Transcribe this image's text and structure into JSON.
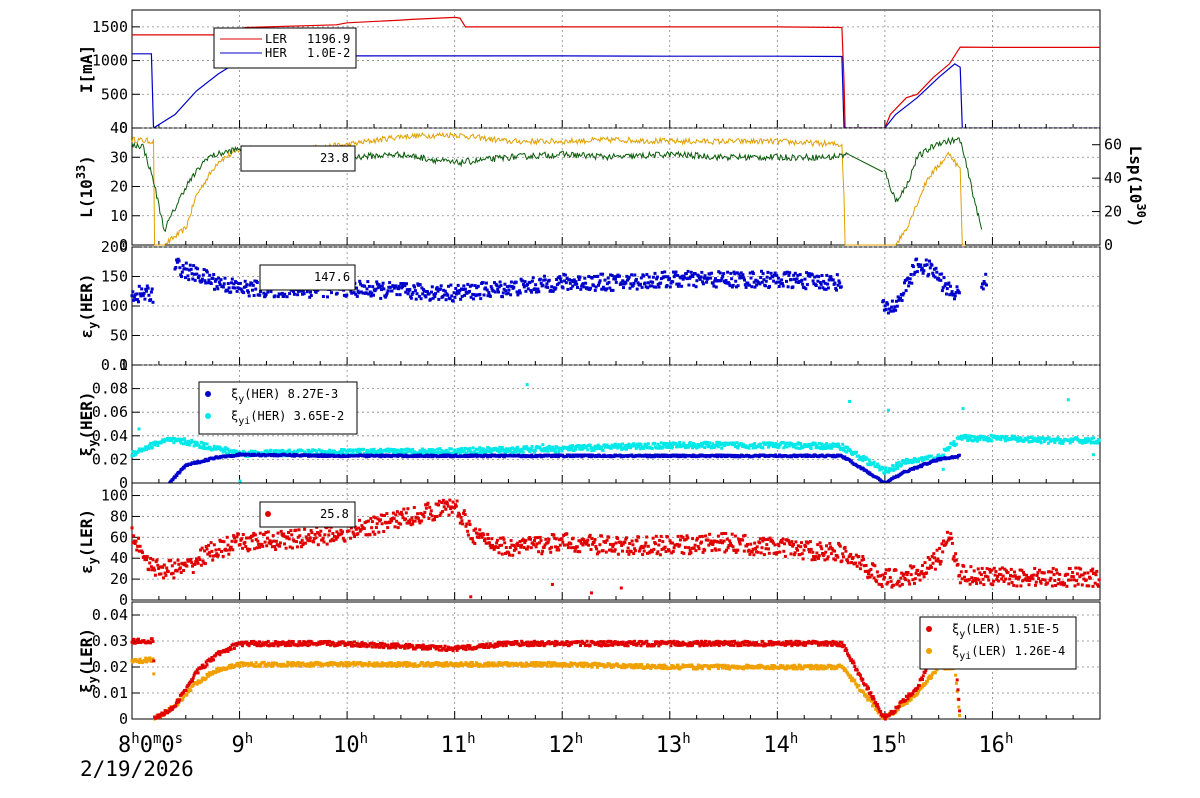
{
  "x_axis": {
    "start_label": "8",
    "start_label_sup": "h",
    "start_rest": "0",
    "start_rest_sup": "m",
    "start_rest2": "0",
    "start_rest2_sup": "s",
    "date": "2/19/2026",
    "hour_labels": [
      "9",
      "10",
      "11",
      "12",
      "13",
      "14",
      "15",
      "16"
    ],
    "hour_sup": "h",
    "range_hours": [
      8.0,
      17.0
    ]
  },
  "colors": {
    "ler": "#e00000",
    "her": "#0000cc",
    "lum": "#0a5a0a",
    "lsp": "#e0a000",
    "cyan": "#00e8e8",
    "orange": "#f0a000"
  },
  "panels": [
    {
      "ylabel": "I[mA]",
      "yticks": [
        "0",
        "500",
        "1000",
        "1500"
      ],
      "ylim": [
        0,
        1750
      ],
      "legend": [
        {
          "name": "LER",
          "value": "1196.9"
        },
        {
          "name": "HER",
          "value": "1.0E-2"
        }
      ]
    },
    {
      "ylabel": "L(10",
      "ylabel_sup": "33",
      "ylabel_end": ")",
      "yticks": [
        "0",
        "10",
        "20",
        "30",
        "40"
      ],
      "ylim": [
        0,
        40
      ],
      "right_label": "Lsp(10",
      "right_label_sup": "30",
      "right_label_end": ")",
      "right_ticks": [
        "0",
        "20",
        "40",
        "60"
      ],
      "right_lim": [
        0,
        70
      ],
      "legend_value": "23.8"
    },
    {
      "ylabel": "ε",
      "ylabel_sub": "y",
      "ylabel_end": "(HER)",
      "yticks": [
        "0",
        "50",
        "100",
        "150",
        "200"
      ],
      "ylim": [
        0,
        200
      ],
      "legend_value": "147.6"
    },
    {
      "ylabel": "ξ",
      "ylabel_sub": "y",
      "ylabel_end": "(HER)",
      "yticks": [
        "0",
        "0.02",
        "0.04",
        "0.06",
        "0.08",
        "0.1"
      ],
      "ylim": [
        0,
        0.1
      ],
      "legend": [
        {
          "sym": "ξ",
          "sub": "y",
          "name": "(HER)",
          "value": "8.27E-3"
        },
        {
          "sym": "ξ",
          "sub": "yi",
          "name": "(HER)",
          "value": "3.65E-2"
        }
      ]
    },
    {
      "ylabel": "ε",
      "ylabel_sub": "y",
      "ylabel_end": "(LER)",
      "yticks": [
        "0",
        "20",
        "40",
        "60",
        "80",
        "100"
      ],
      "ylim": [
        0,
        112
      ],
      "legend_value": "25.8"
    },
    {
      "ylabel": "ξ",
      "ylabel_sub": "y",
      "ylabel_end": "(LER)",
      "yticks": [
        "0",
        "0.01",
        "0.02",
        "0.03",
        "0.04"
      ],
      "ylim": [
        0,
        0.045
      ],
      "legend": [
        {
          "sym": "ξ",
          "sub": "y",
          "name": "(LER)",
          "value": "1.51E-5"
        },
        {
          "sym": "ξ",
          "sub": "yi",
          "name": "(LER)",
          "value": "1.26E-4"
        }
      ]
    }
  ],
  "chart_data": [
    {
      "type": "line",
      "ylabel": "I[mA]",
      "ylim": [
        0,
        1750
      ],
      "series": [
        {
          "name": "LER",
          "x": [
            8.0,
            8.2,
            9.0,
            9.05,
            9.9,
            10.0,
            10.5,
            10.6,
            11.0,
            11.05,
            11.1,
            12.0,
            13.0,
            14.0,
            14.6,
            14.62,
            14.63,
            14.64,
            15.0,
            15.05,
            15.2,
            15.3,
            15.45,
            15.6,
            15.7,
            16.0,
            16.5,
            17.0
          ],
          "y": [
            1380,
            1380,
            1380,
            1490,
            1530,
            1560,
            1600,
            1610,
            1640,
            1630,
            1500,
            1500,
            1500,
            1500,
            1490,
            700,
            0,
            0,
            0,
            200,
            450,
            500,
            750,
            950,
            1200,
            1196,
            1196,
            1196
          ]
        },
        {
          "name": "HER",
          "x": [
            8.0,
            8.18,
            8.2,
            8.4,
            8.6,
            8.8,
            9.0,
            9.3,
            9.6,
            10.0,
            11.0,
            12.0,
            13.0,
            14.0,
            14.6,
            14.62,
            14.63,
            15.0,
            15.1,
            15.3,
            15.5,
            15.65,
            15.7,
            15.72,
            17.0
          ],
          "y": [
            1100,
            1100,
            0,
            200,
            550,
            800,
            1000,
            1050,
            1070,
            1070,
            1070,
            1070,
            1065,
            1065,
            1060,
            0,
            0,
            0,
            200,
            450,
            750,
            950,
            900,
            0,
            0
          ]
        }
      ]
    },
    {
      "type": "line",
      "ylabel": "L(10^33)",
      "ylim": [
        0,
        40
      ],
      "y2label": "Lsp(10^30)",
      "y2lim": [
        0,
        70
      ],
      "series": [
        {
          "name": "L",
          "x": [
            8.0,
            8.1,
            8.2,
            8.3,
            8.5,
            8.7,
            9.0,
            9.5,
            10.0,
            10.5,
            11.0,
            11.5,
            12.0,
            12.5,
            13.0,
            13.5,
            14.0,
            14.5,
            14.65,
            15.0,
            15.1,
            15.2,
            15.3,
            15.5,
            15.7,
            15.9
          ],
          "y": [
            34,
            34,
            22,
            5,
            20,
            30,
            33,
            31,
            30,
            31,
            28,
            30,
            31,
            30,
            31,
            30,
            30,
            30,
            31,
            25,
            15,
            20,
            30,
            35,
            36,
            5
          ]
        },
        {
          "name": "Lsp",
          "axis": "right",
          "x": [
            8.0,
            8.2,
            8.21,
            8.3,
            8.5,
            8.6,
            8.8,
            9.0,
            9.5,
            10.0,
            10.5,
            11.0,
            11.5,
            12.0,
            12.5,
            13.0,
            13.5,
            14.0,
            14.6,
            14.62,
            14.63,
            15.1,
            15.2,
            15.4,
            15.6,
            15.7,
            15.72
          ],
          "y": [
            63,
            62,
            0,
            0,
            10,
            30,
            50,
            57,
            57,
            60,
            65,
            66,
            62,
            62,
            63,
            62,
            62,
            62,
            60,
            30,
            0,
            0,
            10,
            40,
            55,
            45,
            0
          ]
        }
      ]
    },
    {
      "type": "scatter",
      "ylabel": "εy(HER)",
      "ylim": [
        0,
        200
      ],
      "series": [
        {
          "name": "εy(HER)",
          "segments": [
            {
              "x": [
                8.0,
                8.2
              ],
              "y": [
                120,
                120
              ]
            },
            {
              "x": [
                8.4,
                8.5,
                8.8,
                9.0,
                9.5,
                10.0,
                10.5,
                11.0,
                11.5,
                12.0,
                12.5,
                13.0,
                13.5,
                14.0,
                14.6
              ],
              "y": [
                170,
                160,
                140,
                130,
                128,
                130,
                125,
                122,
                130,
                140,
                140,
                145,
                145,
                145,
                140
              ]
            },
            {
              "x": [
                14.98,
                15.1,
                15.3,
                15.45,
                15.6,
                15.7
              ],
              "y": [
                95,
                100,
                170,
                160,
                125,
                120
              ]
            },
            {
              "x": [
                15.9,
                15.95
              ],
              "y": [
                140,
                140
              ]
            }
          ]
        }
      ]
    },
    {
      "type": "scatter",
      "ylabel": "ξy(HER)",
      "ylim": [
        0,
        0.1
      ],
      "series": [
        {
          "name": "ξy(HER)",
          "x": [
            8.35,
            8.5,
            8.8,
            9.0,
            10.0,
            11.0,
            12.0,
            13.0,
            14.0,
            14.6,
            15.0,
            15.2,
            15.5,
            15.7
          ],
          "y": [
            0.0,
            0.015,
            0.022,
            0.024,
            0.023,
            0.023,
            0.023,
            0.023,
            0.023,
            0.023,
            0.0,
            0.01,
            0.02,
            0.023
          ]
        },
        {
          "name": "ξyi(HER)",
          "x": [
            8.0,
            8.3,
            8.5,
            9.0,
            10.0,
            11.0,
            12.0,
            13.0,
            14.0,
            14.6,
            15.0,
            15.2,
            15.5,
            15.7,
            16.0,
            16.5,
            17.0
          ],
          "y": [
            0.025,
            0.036,
            0.035,
            0.025,
            0.026,
            0.027,
            0.029,
            0.032,
            0.032,
            0.031,
            0.01,
            0.018,
            0.022,
            0.038,
            0.038,
            0.036,
            0.036
          ]
        }
      ]
    },
    {
      "type": "scatter",
      "ylabel": "εy(LER)",
      "ylim": [
        0,
        112
      ],
      "series": [
        {
          "name": "εy(LER)",
          "x": [
            8.0,
            8.2,
            8.5,
            8.7,
            9.0,
            9.5,
            10.0,
            10.5,
            11.0,
            11.2,
            11.5,
            12.0,
            12.5,
            13.0,
            13.5,
            14.0,
            14.6,
            15.0,
            15.3,
            15.5,
            15.6,
            15.7,
            16.0,
            16.5,
            17.0
          ],
          "y": [
            62,
            30,
            30,
            45,
            55,
            58,
            65,
            78,
            90,
            60,
            50,
            55,
            52,
            52,
            55,
            50,
            45,
            20,
            25,
            40,
            60,
            25,
            22,
            22,
            22
          ]
        }
      ]
    },
    {
      "type": "scatter",
      "ylabel": "ξy(LER)",
      "ylim": [
        0,
        0.045
      ],
      "series": [
        {
          "name": "ξy(LER)",
          "x": [
            8.0,
            8.2,
            8.21,
            8.4,
            8.6,
            8.8,
            9.0,
            9.5,
            10.0,
            11.0,
            11.5,
            12.0,
            13.0,
            14.0,
            14.6,
            15.0,
            15.3,
            15.5,
            15.65,
            15.7
          ],
          "y": [
            0.03,
            0.03,
            0.0,
            0.005,
            0.018,
            0.025,
            0.029,
            0.029,
            0.029,
            0.027,
            0.029,
            0.029,
            0.029,
            0.029,
            0.029,
            0.0,
            0.012,
            0.028,
            0.028,
            0.0
          ]
        },
        {
          "name": "ξyi(LER)",
          "x": [
            8.0,
            8.2,
            8.21,
            8.4,
            8.6,
            8.8,
            9.0,
            9.5,
            10.0,
            11.0,
            11.5,
            12.0,
            13.0,
            14.0,
            14.6,
            15.0,
            15.3,
            15.5,
            15.65,
            15.7
          ],
          "y": [
            0.022,
            0.023,
            0.0,
            0.005,
            0.014,
            0.019,
            0.021,
            0.021,
            0.021,
            0.021,
            0.021,
            0.021,
            0.02,
            0.02,
            0.02,
            0.0,
            0.01,
            0.02,
            0.02,
            0.0
          ]
        }
      ]
    }
  ]
}
